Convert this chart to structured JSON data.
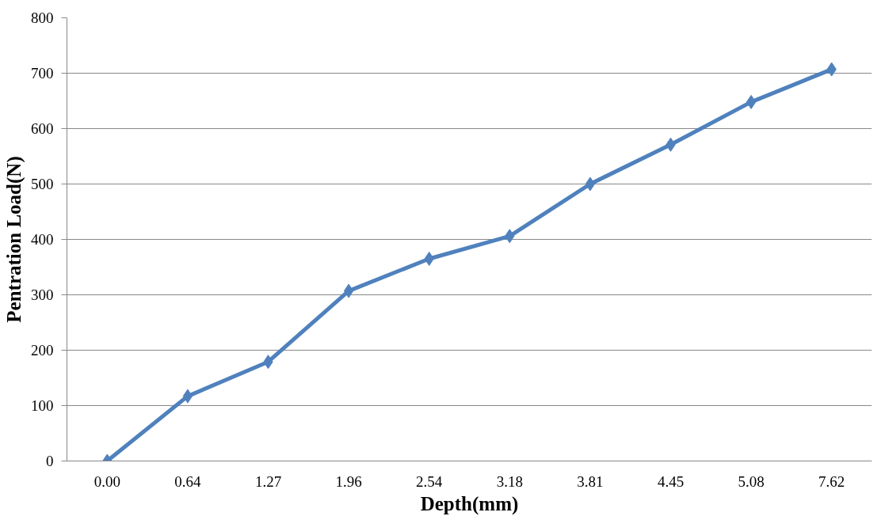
{
  "chart_data": {
    "type": "line",
    "xlabel": "Depth(mm)",
    "ylabel": "Pentration Load(N)",
    "categories": [
      "0.00",
      "0.64",
      "1.27",
      "1.96",
      "2.54",
      "3.18",
      "3.81",
      "4.45",
      "5.08",
      "7.62"
    ],
    "series": [
      {
        "color": "#4f81bd",
        "values": [
          0,
          117,
          179,
          307,
          365,
          406,
          500,
          571,
          648,
          707
        ]
      }
    ],
    "ylim": [
      0,
      800
    ],
    "yticks": [
      0,
      100,
      200,
      300,
      400,
      500,
      600,
      700,
      800
    ],
    "grid": "y",
    "marker": "diamond",
    "line_style": "solid"
  }
}
